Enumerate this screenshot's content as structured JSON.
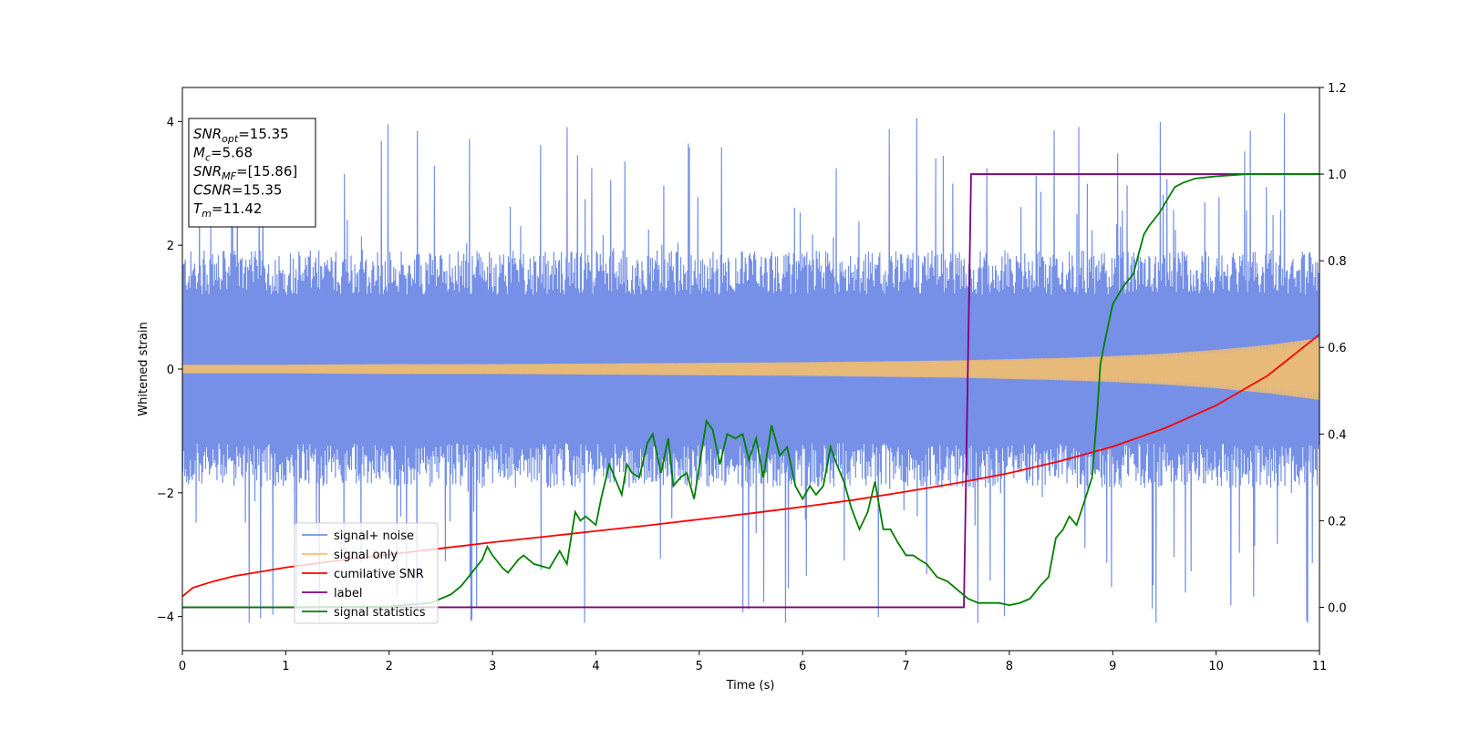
{
  "chart_data": {
    "type": "line",
    "xlabel": "Time (s)",
    "ylabel": "Whitened strain",
    "xlim": [
      0,
      11
    ],
    "ylim_left": [
      -4.55,
      4.55
    ],
    "ylim_right": [
      -0.1,
      1.2
    ],
    "x_ticks": [
      "0",
      "1",
      "2",
      "3",
      "4",
      "5",
      "6",
      "7",
      "8",
      "9",
      "10",
      "11"
    ],
    "y_left_ticks": [
      "4",
      "2",
      "0",
      "−2",
      "−4"
    ],
    "y_left_tick_values": [
      4,
      2,
      0,
      -2,
      -4
    ],
    "y_right_ticks": [
      "1.2",
      "1.0",
      "0.8",
      "0.6",
      "0.4",
      "0.2",
      "0.0"
    ],
    "y_right_tick_values": [
      1.2,
      1.0,
      0.8,
      0.6,
      0.4,
      0.2,
      0.0
    ],
    "grid": false,
    "annotation": {
      "lines": [
        {
          "sym": "SNR",
          "sub": "opt",
          "value": "=15.35"
        },
        {
          "sym": "M",
          "sub": "c",
          "value": "=5.68"
        },
        {
          "sym": "SNR",
          "sub": "MF",
          "value": "=[15.86]"
        },
        {
          "sym": "CSNR",
          "sub": "",
          "value": "=15.35"
        },
        {
          "sym": "T",
          "sub": "m",
          "value": "=11.42"
        }
      ],
      "placement": "top-left"
    },
    "legend": {
      "placement": "lower-left",
      "entries": [
        {
          "label": "signal+ noise",
          "color": "#7590e6"
        },
        {
          "label": "signal only",
          "color": "#f5bf6e"
        },
        {
          "label": "cumilative SNR",
          "color": "#ff0000"
        },
        {
          "label": "label",
          "color": "#800080"
        },
        {
          "label": "signal statistics",
          "color": "#008000"
        }
      ]
    },
    "series": [
      {
        "name": "signal+ noise",
        "axis": "left",
        "color": "#7590e6",
        "kind": "noise_band",
        "core_amplitude": 1.6,
        "spike_max": 4.2,
        "spike_min": -4.1
      },
      {
        "name": "signal only",
        "axis": "left",
        "color": "#f5bf6e",
        "kind": "chirp_envelope",
        "x": [
          0,
          1,
          2,
          3,
          4,
          5,
          6,
          7,
          7.5,
          8,
          8.5,
          9,
          9.5,
          10,
          10.5,
          11
        ],
        "envelope": [
          0.07,
          0.07,
          0.08,
          0.08,
          0.09,
          0.1,
          0.11,
          0.13,
          0.14,
          0.16,
          0.18,
          0.21,
          0.25,
          0.31,
          0.39,
          0.5
        ]
      },
      {
        "name": "cumilative SNR",
        "axis": "right",
        "color": "#ff0000",
        "x": [
          0,
          0.1,
          0.3,
          0.5,
          1,
          1.5,
          2,
          2.5,
          3,
          3.5,
          4,
          4.5,
          5,
          5.5,
          6,
          6.5,
          7,
          7.5,
          8,
          8.5,
          9,
          9.5,
          10,
          10.5,
          11
        ],
        "y": [
          0.025,
          0.045,
          0.06,
          0.072,
          0.092,
          0.108,
          0.122,
          0.136,
          0.15,
          0.163,
          0.176,
          0.189,
          0.203,
          0.217,
          0.232,
          0.248,
          0.267,
          0.287,
          0.31,
          0.338,
          0.371,
          0.413,
          0.466,
          0.535,
          0.63
        ]
      },
      {
        "name": "label",
        "axis": "right",
        "color": "#800080",
        "x": [
          0,
          7.56,
          7.63,
          11
        ],
        "y": [
          0,
          0,
          1,
          1
        ]
      },
      {
        "name": "signal statistics",
        "axis": "right",
        "color": "#008000",
        "x": [
          0,
          1,
          2,
          2.4,
          2.6,
          2.7,
          2.8,
          2.9,
          2.95,
          3.0,
          3.1,
          3.15,
          3.25,
          3.3,
          3.4,
          3.55,
          3.65,
          3.72,
          3.8,
          3.85,
          3.9,
          4.0,
          4.05,
          4.13,
          4.25,
          4.3,
          4.35,
          4.42,
          4.5,
          4.55,
          4.63,
          4.7,
          4.75,
          4.82,
          4.88,
          4.95,
          5.07,
          5.13,
          5.2,
          5.27,
          5.35,
          5.42,
          5.48,
          5.55,
          5.62,
          5.7,
          5.78,
          5.85,
          5.93,
          6.0,
          6.07,
          6.13,
          6.2,
          6.27,
          6.33,
          6.4,
          6.47,
          6.55,
          6.63,
          6.7,
          6.78,
          6.85,
          6.92,
          7.0,
          7.07,
          7.13,
          7.2,
          7.3,
          7.4,
          7.5,
          7.6,
          7.7,
          7.8,
          7.9,
          8.0,
          8.1,
          8.2,
          8.3,
          8.38,
          8.45,
          8.52,
          8.58,
          8.65,
          8.72,
          8.8,
          8.85,
          8.88,
          8.92,
          9.0,
          9.1,
          9.2,
          9.3,
          9.35,
          9.45,
          9.55,
          9.6,
          9.68,
          9.8,
          10.0,
          10.3,
          10.6,
          11.0
        ],
        "y": [
          0,
          0,
          0.002,
          0.01,
          0.03,
          0.05,
          0.08,
          0.11,
          0.14,
          0.12,
          0.09,
          0.08,
          0.11,
          0.12,
          0.1,
          0.09,
          0.13,
          0.1,
          0.22,
          0.2,
          0.21,
          0.19,
          0.25,
          0.33,
          0.26,
          0.33,
          0.31,
          0.3,
          0.38,
          0.4,
          0.31,
          0.39,
          0.28,
          0.3,
          0.31,
          0.25,
          0.43,
          0.41,
          0.33,
          0.4,
          0.39,
          0.4,
          0.34,
          0.39,
          0.3,
          0.42,
          0.35,
          0.37,
          0.28,
          0.25,
          0.28,
          0.26,
          0.28,
          0.37,
          0.33,
          0.29,
          0.23,
          0.18,
          0.22,
          0.29,
          0.18,
          0.18,
          0.15,
          0.12,
          0.12,
          0.11,
          0.1,
          0.07,
          0.06,
          0.04,
          0.02,
          0.01,
          0.01,
          0.01,
          0.005,
          0.01,
          0.02,
          0.05,
          0.07,
          0.16,
          0.18,
          0.21,
          0.19,
          0.24,
          0.3,
          0.45,
          0.56,
          0.61,
          0.7,
          0.74,
          0.77,
          0.86,
          0.88,
          0.91,
          0.95,
          0.97,
          0.98,
          0.99,
          0.995,
          1.0,
          1.0,
          1.0
        ]
      }
    ]
  }
}
